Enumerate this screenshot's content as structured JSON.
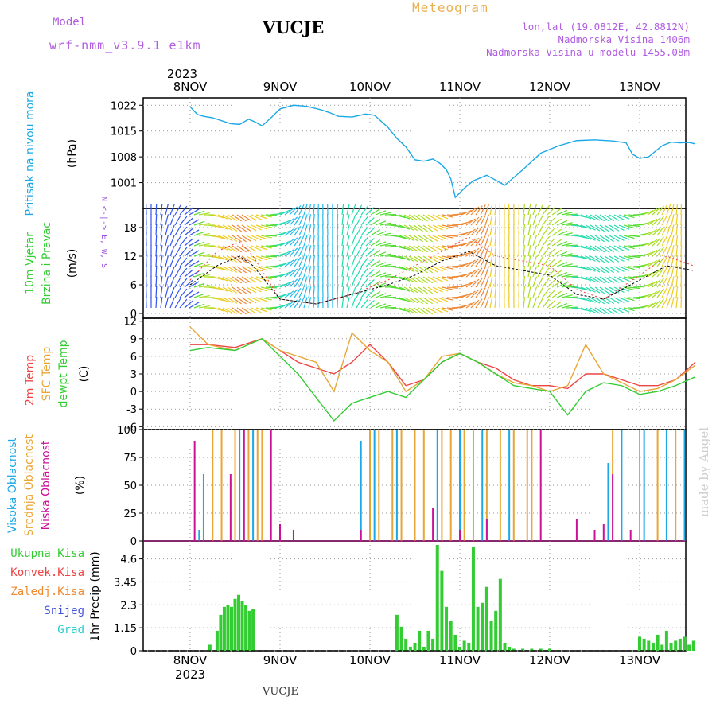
{
  "header": {
    "model_label": "Model",
    "model_name": "wrf-nmm_v3.9.1 e1km",
    "station": "VUCJE",
    "product": "Meteogram",
    "lonlat": "lon,lat (19.0812E, 42.8812N)",
    "elevation": "Nadmorska Visina 1406m",
    "model_elevation": "Nadmorska Visina u modelu 1455.08m",
    "footer_station": "VUCJE",
    "credit": "made by Angel"
  },
  "time_axis": {
    "year": "2023",
    "days": [
      "8NOV",
      "9NOV",
      "10NOV",
      "11NOV",
      "12NOV",
      "13NOV"
    ]
  },
  "colors": {
    "pressure": "#1ba8e6",
    "temp2m": "#ee4444",
    "sfc_temp": "#e8a638",
    "dewpt": "#33cc33",
    "cloud_high": "#1ba8e6",
    "cloud_mid": "#e8a638",
    "cloud_low": "#cc1199",
    "precip_total": "#33cc33",
    "precip_conv": "#ee4444",
    "precip_frz": "#f08a30",
    "precip_snow": "#4455dd",
    "precip_hail": "#22cccc",
    "wind_label": "#9a4fe0"
  },
  "chart_data": [
    {
      "type": "line",
      "name": "pressure",
      "ylabel_a": "Pritisak na nivou mora",
      "ylabel_b": "(hPa)",
      "yticks": [
        1001,
        1008,
        1015,
        1022
      ],
      "ylim": [
        994,
        1024
      ],
      "x": [
        0,
        0.08,
        0.15,
        0.25,
        0.45,
        0.55,
        0.65,
        0.72,
        0.8,
        0.9,
        1.0,
        1.15,
        1.3,
        1.45,
        1.55,
        1.65,
        1.8,
        1.95,
        2.05,
        2.2,
        2.3,
        2.4,
        2.5,
        2.6,
        2.7,
        2.78,
        2.85,
        2.9,
        2.95,
        3.05,
        3.1,
        3.15,
        3.3,
        3.5,
        3.7,
        3.9,
        4.1,
        4.3,
        4.5,
        4.7,
        4.85,
        4.92,
        5.0,
        5.1,
        5.25,
        5.35,
        5.45,
        5.55,
        5.62
      ],
      "y": [
        1021.6,
        1019.5,
        1019,
        1018.6,
        1017,
        1016.8,
        1018.2,
        1017.5,
        1016.4,
        1018.6,
        1021,
        1022,
        1021.7,
        1020.8,
        1020,
        1019,
        1018.8,
        1019.6,
        1019.3,
        1016,
        1013,
        1010.7,
        1007.2,
        1006.8,
        1007.4,
        1006.2,
        1004.5,
        1002,
        997,
        999.5,
        1000.5,
        1001.5,
        1003,
        1000.3,
        1004.5,
        1009,
        1011,
        1012.4,
        1012.6,
        1012.3,
        1011.8,
        1008.7,
        1007.6,
        1008,
        1011,
        1012,
        1011.8,
        1011.9,
        1011.5
      ],
      "grid": true
    },
    {
      "type": "line",
      "name": "wind",
      "ylabel_a": "10m Vjetar",
      "ylabel_b": "Brzina i Pravac",
      "ylabel_c": "(m/s)",
      "compass": "N <-|-> E, W, S",
      "yticks": [
        0,
        6,
        12,
        18
      ],
      "ylim": [
        -1,
        22
      ],
      "x": [
        0,
        0.3,
        0.55,
        0.7,
        1.0,
        1.4,
        1.8,
        2.2,
        2.5,
        2.8,
        3.1,
        3.4,
        3.7,
        4.0,
        4.3,
        4.6,
        5.0,
        5.3,
        5.6
      ],
      "y": [
        6,
        10,
        12,
        10,
        3,
        2,
        4,
        6,
        8,
        11,
        13,
        10,
        9,
        8,
        4,
        3,
        7,
        10,
        9
      ],
      "gust_x": [
        0,
        0.3,
        0.55,
        0.7,
        1.0,
        1.4,
        1.8,
        2.2,
        2.5,
        2.8,
        3.1,
        3.4,
        3.7,
        4.0,
        4.3,
        4.6,
        5.0,
        5.3,
        5.6
      ],
      "gust_y": [
        7,
        13,
        15,
        12,
        3,
        2,
        4,
        7,
        10,
        13,
        16,
        12,
        11,
        10,
        5,
        3,
        8,
        12,
        10
      ],
      "grid": true
    },
    {
      "type": "line",
      "name": "temperature",
      "ylabel_a": "2m Temp",
      "ylabel_b": "SFC Temp",
      "ylabel_c": "dewpt Temp",
      "ylabel_d": "(C)",
      "yticks": [
        -6,
        -3,
        0,
        3,
        6,
        9,
        12
      ],
      "ylim": [
        -6.5,
        12.5
      ],
      "x": [
        0,
        0.2,
        0.5,
        0.8,
        1.0,
        1.2,
        1.4,
        1.6,
        1.8,
        2.0,
        2.2,
        2.4,
        2.6,
        2.8,
        3.0,
        3.2,
        3.4,
        3.6,
        3.8,
        4.0,
        4.2,
        4.4,
        4.6,
        4.8,
        5.0,
        5.2,
        5.4,
        5.62
      ],
      "series": [
        {
          "name": "2m Temp",
          "values": [
            8,
            8,
            7.5,
            9,
            7,
            5,
            4,
            3,
            5,
            8,
            5,
            1,
            2,
            5,
            6.5,
            5,
            4,
            2,
            1,
            1,
            0.5,
            3,
            3,
            2,
            1,
            1,
            2,
            5
          ]
        },
        {
          "name": "SFC Temp",
          "values": [
            11,
            8,
            7,
            9,
            7,
            6,
            5,
            0,
            10,
            7,
            5,
            0,
            2,
            6,
            6.5,
            5,
            3,
            1.5,
            1,
            0,
            1,
            8,
            3,
            1.5,
            0,
            0.5,
            2,
            4.5
          ]
        },
        {
          "name": "dewpt Temp",
          "values": [
            7,
            7.5,
            7,
            9,
            6,
            3,
            -1,
            -5,
            -2,
            -1,
            0,
            -1,
            2,
            5,
            6.5,
            5,
            3,
            1,
            0.5,
            0,
            -4,
            0,
            1.5,
            1,
            -0.5,
            0,
            1,
            2.5
          ]
        }
      ],
      "grid": true
    },
    {
      "type": "bar",
      "name": "cloud",
      "ylabel_a": "Visoka Oblacnost",
      "ylabel_b": "Srednja Oblacnost",
      "ylabel_c": "Niska Oblacnost",
      "ylabel_d": "(%)",
      "yticks": [
        0,
        25,
        50,
        75,
        100
      ],
      "ylim": [
        0,
        100
      ],
      "low_x": [
        0.05,
        0.45,
        0.6,
        0.9,
        1.0,
        1.15,
        1.9,
        2.7,
        3.0,
        3.3,
        3.9,
        4.3,
        4.5,
        4.6,
        4.7,
        4.9
      ],
      "low_y": [
        90,
        60,
        100,
        100,
        15,
        10,
        10,
        30,
        10,
        20,
        100,
        20,
        10,
        15,
        60,
        10
      ],
      "mid_x": [
        0.25,
        0.35,
        0.5,
        0.65,
        0.75,
        0.8,
        2.0,
        2.1,
        2.25,
        2.35,
        2.5,
        2.6,
        2.8,
        2.9,
        3.05,
        3.15,
        3.3,
        3.45,
        3.6,
        3.75,
        3.8,
        4.7,
        5.0,
        5.2,
        5.4
      ],
      "mid_y": [
        100,
        100,
        100,
        100,
        100,
        100,
        100,
        100,
        100,
        100,
        100,
        100,
        100,
        100,
        100,
        100,
        100,
        100,
        100,
        100,
        100,
        100,
        100,
        100,
        100
      ],
      "high_x": [
        0.1,
        0.15,
        0.55,
        0.7,
        1.9,
        2.05,
        2.3,
        2.75,
        3.0,
        3.25,
        3.55,
        4.65,
        4.8,
        5.05,
        5.3,
        5.5
      ],
      "high_y": [
        10,
        60,
        100,
        100,
        90,
        100,
        100,
        100,
        100,
        100,
        100,
        70,
        100,
        100,
        100,
        100
      ],
      "grid": true
    },
    {
      "type": "bar",
      "name": "precip",
      "ylabel_a": "1hr Precip (mm)",
      "legend": [
        "Ukupna Kisa",
        "Konvek.Kisa",
        "Zaledj.Kisa",
        "Snijeg",
        "Grad"
      ],
      "yticks": [
        0,
        1.15,
        2.3,
        3.45,
        4.6
      ],
      "ylim": [
        0,
        5.5
      ],
      "total_x": [
        0.22,
        0.3,
        0.34,
        0.38,
        0.42,
        0.46,
        0.5,
        0.54,
        0.58,
        0.62,
        0.66,
        0.7,
        2.3,
        2.35,
        2.4,
        2.45,
        2.5,
        2.55,
        2.6,
        2.65,
        2.7,
        2.75,
        2.8,
        2.85,
        2.9,
        2.95,
        3.0,
        3.05,
        3.1,
        3.15,
        3.2,
        3.25,
        3.3,
        3.35,
        3.4,
        3.45,
        3.5,
        3.55,
        3.6,
        3.7,
        3.8,
        3.9,
        4.0,
        5.0,
        5.05,
        5.1,
        5.15,
        5.2,
        5.25,
        5.3,
        5.35,
        5.4,
        5.45,
        5.5,
        5.55,
        5.6
      ],
      "total_y": [
        0.3,
        1.0,
        1.8,
        2.2,
        2.3,
        2.2,
        2.6,
        2.8,
        2.5,
        2.3,
        2.0,
        2.1,
        1.8,
        1.2,
        0.6,
        0.2,
        0.4,
        1.0,
        0.2,
        1.0,
        0.6,
        5.3,
        4.0,
        2.2,
        1.5,
        0.8,
        0.2,
        0.5,
        0.4,
        5.2,
        2.2,
        2.4,
        3.2,
        1.5,
        2.0,
        3.6,
        0.4,
        0.2,
        0.1,
        0.1,
        0.1,
        0.1,
        0.1,
        0.7,
        0.6,
        0.5,
        0.4,
        0.8,
        0.3,
        1.0,
        0.4,
        0.5,
        0.6,
        0.7,
        0.3,
        0.5
      ],
      "grid": true
    }
  ]
}
